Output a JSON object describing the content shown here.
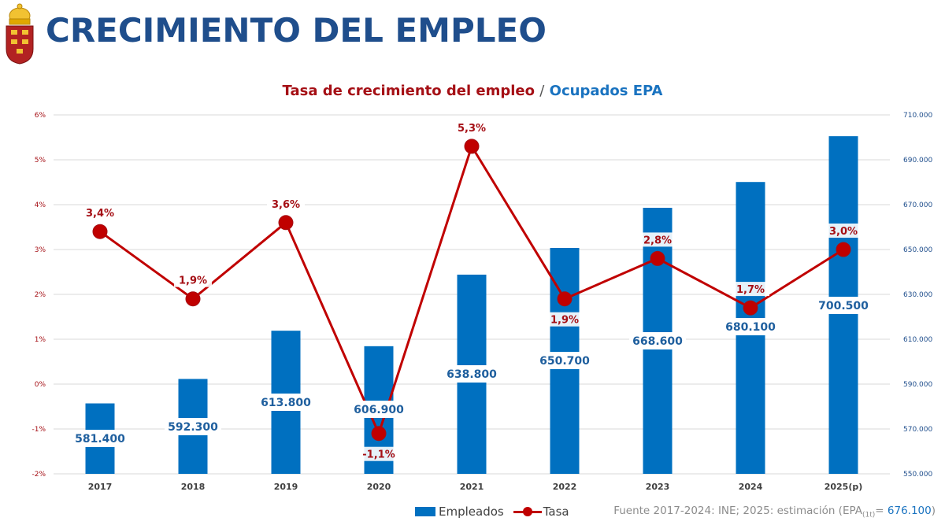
{
  "header": {
    "title": "CRECIMIENTO DEL EMPLEO",
    "logo_icon": "region-of-murcia-crest-icon"
  },
  "chart_title": {
    "part1": "Tasa de crecimiento del empleo",
    "separator": "/",
    "part2": "Ocupados EPA"
  },
  "legend": {
    "bars_label": "Empleados",
    "line_label": "Tasa"
  },
  "source": {
    "prefix": "Fuente 2017-2024: INE; 2025: estimación (EPA",
    "subscript": "(1t)",
    "equals": "= ",
    "value": "676.100",
    "suffix": ")"
  },
  "colors": {
    "bars": "#0070c0",
    "line": "#c00000",
    "title": "#1f4e8c",
    "rate_label": "#a50f15",
    "bar_label": "#1f5f9e"
  },
  "chart_data": {
    "type": "bar+line",
    "categories": [
      "2017",
      "2018",
      "2019",
      "2020",
      "2021",
      "2022",
      "2023",
      "2024",
      "2025(p)"
    ],
    "series": [
      {
        "name": "Empleados",
        "type": "bar",
        "axis": "right",
        "values": [
          581400,
          592300,
          613800,
          606900,
          638800,
          650700,
          668600,
          680100,
          700500
        ],
        "labels": [
          "581.400",
          "592.300",
          "613.800",
          "606.900",
          "638.800",
          "650.700",
          "668.600",
          "680.100",
          "700.500"
        ]
      },
      {
        "name": "Tasa",
        "type": "line",
        "axis": "left",
        "values": [
          3.4,
          1.9,
          3.6,
          -1.1,
          5.3,
          1.9,
          2.8,
          1.7,
          3.0
        ],
        "labels": [
          "3,4%",
          "1,9%",
          "3,6%",
          "-1,1%",
          "5,3%",
          "1,9%",
          "2,8%",
          "1,7%",
          "3,0%"
        ]
      }
    ],
    "left_axis": {
      "range": [
        -2,
        6
      ],
      "ticks": [
        -2,
        -1,
        0,
        1,
        2,
        3,
        4,
        5,
        6
      ],
      "tick_labels": [
        "-2%",
        "-1%",
        "0%",
        "1%",
        "2%",
        "3%",
        "4%",
        "5%",
        "6%"
      ]
    },
    "right_axis": {
      "range": [
        550000,
        710000
      ],
      "ticks": [
        550000,
        570000,
        590000,
        610000,
        630000,
        650000,
        670000,
        690000,
        710000
      ],
      "tick_labels": [
        "550.000",
        "570.000",
        "590.000",
        "610.000",
        "630.000",
        "650.000",
        "670.000",
        "690.000",
        "710.000"
      ]
    },
    "grid": true,
    "legend_position": "bottom"
  }
}
